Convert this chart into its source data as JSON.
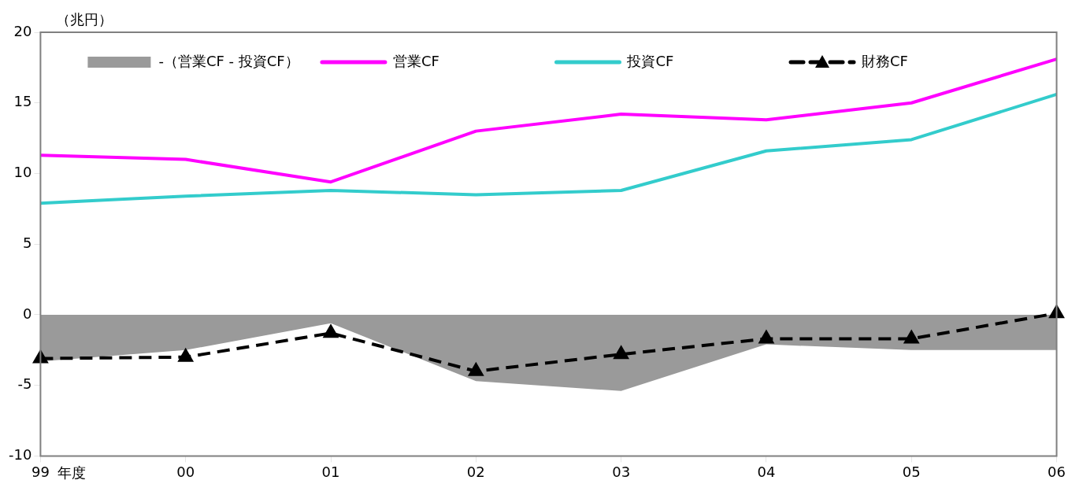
{
  "chart_data": {
    "type": "line",
    "ylabel": "（兆円）",
    "xlabel": "年度",
    "categories": [
      "99",
      "00",
      "01",
      "02",
      "03",
      "04",
      "05",
      "06"
    ],
    "ylim": [
      -10,
      20
    ],
    "yticks": [
      -10,
      -5,
      0,
      5,
      10,
      15,
      20
    ],
    "grid": false,
    "legend": "top",
    "series": [
      {
        "name": "-（営業CF - 投資CF）",
        "type": "area",
        "color": "#9a9a9a",
        "values": [
          -3.3,
          -2.5,
          -0.6,
          -4.7,
          -5.4,
          -2.1,
          -2.5,
          -2.5
        ]
      },
      {
        "name": "営業CF",
        "color": "#ff00ff",
        "marker": "none",
        "line_style": "solid",
        "values": [
          11.3,
          11.0,
          9.4,
          13.0,
          14.2,
          13.8,
          15.0,
          18.1
        ]
      },
      {
        "name": "投資CF",
        "color": "#33cccc",
        "marker": "none",
        "line_style": "solid",
        "values": [
          7.9,
          8.4,
          8.8,
          8.5,
          8.8,
          11.6,
          12.4,
          15.6
        ]
      },
      {
        "name": "財務CF",
        "color": "#000000",
        "marker": "triangle",
        "line_style": "dashed",
        "values": [
          -3.1,
          -3.0,
          -1.3,
          -4.0,
          -2.8,
          -1.7,
          -1.7,
          0.1
        ]
      }
    ]
  }
}
